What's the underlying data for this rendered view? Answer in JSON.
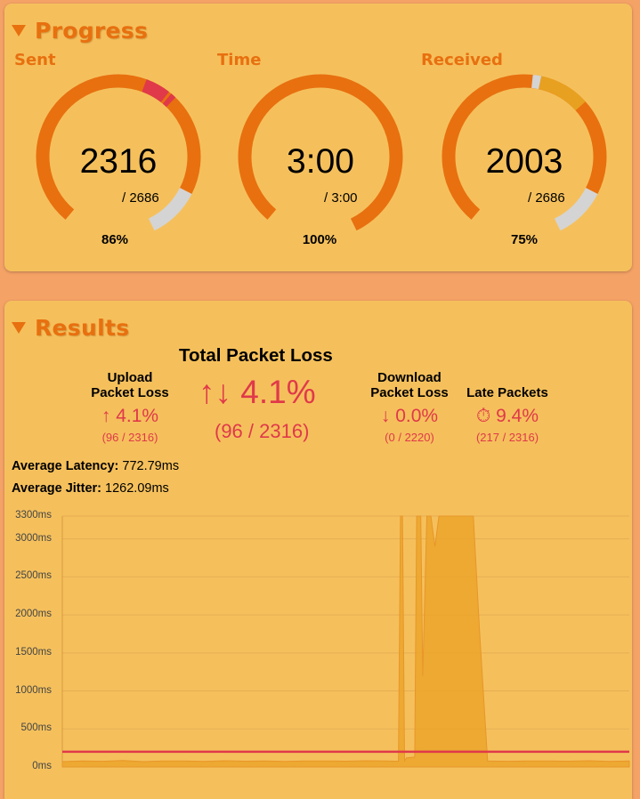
{
  "progress": {
    "header": "Progress",
    "gauges": [
      {
        "label": "Sent",
        "value": "2316",
        "total": "/ 2686",
        "percent": "86%"
      },
      {
        "label": "Time",
        "value": "3:00",
        "total": "/ 3:00",
        "percent": "100%"
      },
      {
        "label": "Received",
        "value": "2003",
        "total": "/ 2686",
        "percent": "75%"
      }
    ]
  },
  "results": {
    "header": "Results",
    "total_title": "Total Packet Loss",
    "total_icon": "↑↓",
    "total_value": "4.1%",
    "total_counts": "(96 / 2316)",
    "upload": {
      "title_line1": "Upload",
      "title_line2": "Packet Loss",
      "icon": "↑",
      "value": "4.1%",
      "counts": "(96 / 2316)"
    },
    "download": {
      "title_line1": "Download",
      "title_line2": "Packet Loss",
      "icon": "↓",
      "value": "0.0%",
      "counts": "(0 / 2220)"
    },
    "late": {
      "title": "Late Packets",
      "icon": "⏱",
      "value": "9.4%",
      "counts": "(217 / 2316)"
    },
    "avg_latency_label": "Average Latency:",
    "avg_latency_value": "772.79ms",
    "avg_jitter_label": "Average Jitter:",
    "avg_jitter_value": "1262.09ms"
  },
  "colors": {
    "accent": "#e8700f",
    "panel": "#f5c05c",
    "background": "#f5a266",
    "loss_red": "#e0394a",
    "late_amber": "#e8a020",
    "remaining_grey": "#d4d4d4"
  },
  "chart_data": {
    "type": "area",
    "y_tick_labels": [
      "0ms",
      "500ms",
      "1000ms",
      "1500ms",
      "2000ms",
      "2500ms",
      "3000ms",
      "3300ms"
    ],
    "ylim": [
      0,
      3300
    ],
    "grid": true,
    "threshold_ms": 200,
    "series": [
      {
        "x": [
          0,
          10,
          20,
          30,
          40,
          50,
          60,
          70,
          80,
          90,
          100,
          110,
          120,
          130,
          140,
          150,
          160,
          166,
          167,
          168,
          169,
          170,
          174,
          175,
          177,
          178,
          180,
          182,
          184,
          186,
          188,
          190,
          192,
          194,
          196,
          198,
          199,
          200,
          203,
          206,
          210,
          220,
          230,
          240,
          250,
          260,
          270,
          280
        ],
        "y": [
          70,
          80,
          75,
          85,
          70,
          80,
          78,
          72,
          82,
          76,
          80,
          74,
          78,
          80,
          76,
          82,
          78,
          75,
          3300,
          3300,
          80,
          120,
          130,
          3300,
          3300,
          1200,
          3300,
          3300,
          2900,
          3300,
          3300,
          3300,
          3300,
          3300,
          3300,
          3300,
          3300,
          3300,
          3300,
          1800,
          80,
          75,
          80,
          78,
          76,
          82,
          74,
          80
        ]
      }
    ]
  }
}
